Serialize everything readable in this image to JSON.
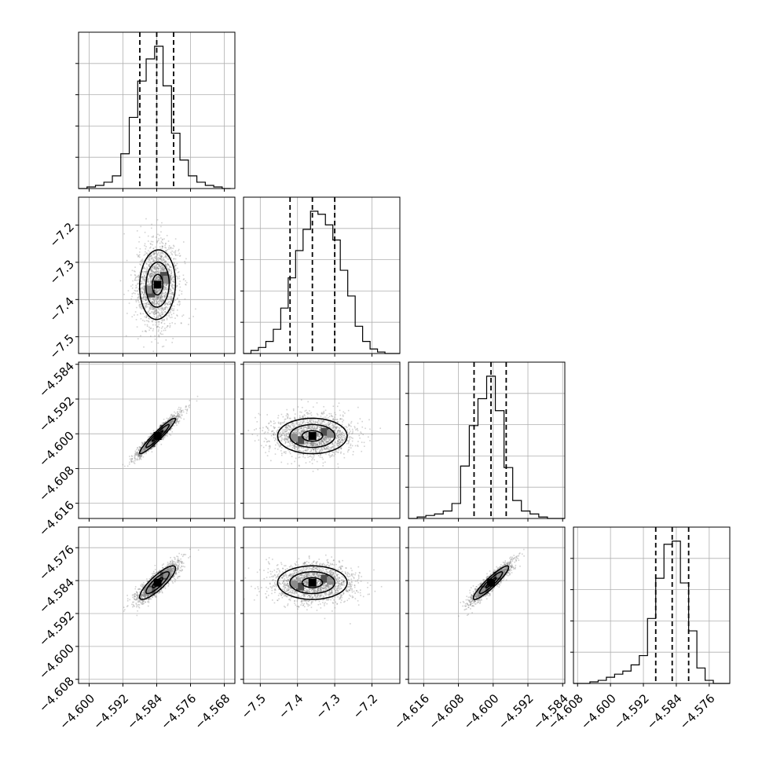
{
  "chart_data": {
    "type": "corner",
    "title": "",
    "parameters": [
      {
        "index": 0,
        "name": "",
        "range": [
          -4.6025,
          -4.5655
        ],
        "ticks": [
          -4.6,
          -4.592,
          -4.584,
          -4.576,
          -4.568
        ],
        "tick_labels": [
          "−4.600",
          "−4.592",
          "−4.584",
          "−4.576",
          "−4.568"
        ],
        "mean": -4.5838,
        "sd": 0.0025,
        "quantiles": [
          -4.588,
          -4.584,
          -4.58
        ],
        "corr_with": {
          "1": 0.05,
          "2": 0.95,
          "3": 0.85
        }
      },
      {
        "index": 1,
        "name": "",
        "range": [
          -7.545,
          -7.125
        ],
        "ticks": [
          -7.5,
          -7.4,
          -7.3,
          -7.2
        ],
        "tick_labels": [
          "−7.5",
          "−7.4",
          "−7.3",
          "−7.2"
        ],
        "mean": -7.36,
        "sd": 0.055,
        "quantiles": [
          -7.42,
          -7.36,
          -7.3
        ],
        "corr_with": {
          "2": 0.0,
          "3": 0.0
        }
      },
      {
        "index": 2,
        "name": "",
        "range": [
          -4.6195,
          -4.5835
        ],
        "ticks": [
          -4.616,
          -4.608,
          -4.6,
          -4.592,
          -4.584
        ],
        "tick_labels": [
          "−4.616",
          "−4.608",
          "−4.600",
          "−4.592",
          "−4.584"
        ],
        "mean": -4.6005,
        "sd": 0.0024,
        "quantiles": [
          -4.6044,
          -4.6005,
          -4.597
        ],
        "corr_with": {
          "3": 0.92
        }
      },
      {
        "index": 3,
        "name": "",
        "range": [
          -4.609,
          -4.571
        ],
        "ticks": [
          -4.608,
          -4.6,
          -4.592,
          -4.584,
          -4.576
        ],
        "tick_labels": [
          "−4.608",
          "−4.600",
          "−4.592",
          "−4.584",
          "−4.576"
        ],
        "mean": -4.5845,
        "sd": 0.0024,
        "quantiles": [
          -4.589,
          -4.585,
          -4.581
        ]
      }
    ],
    "histograms": [
      {
        "param": 0,
        "edges": [
          -4.6025,
          -4.6005,
          -4.5985,
          -4.5965,
          -4.5945,
          -4.5925,
          -4.5905,
          -4.5885,
          -4.5865,
          -4.5845,
          -4.5825,
          -4.5805,
          -4.5785,
          -4.5765,
          -4.5745,
          -4.5725,
          -4.5705,
          -4.5685,
          -4.5665
        ],
        "counts": [
          0,
          1,
          2,
          4,
          8,
          22,
          45,
          68,
          82,
          90,
          65,
          35,
          18,
          8,
          4,
          2,
          1,
          0
        ]
      },
      {
        "param": 1,
        "edges": [
          -7.545,
          -7.525,
          -7.505,
          -7.485,
          -7.465,
          -7.445,
          -7.425,
          -7.405,
          -7.385,
          -7.365,
          -7.345,
          -7.325,
          -7.305,
          -7.285,
          -7.265,
          -7.245,
          -7.225,
          -7.205,
          -7.185,
          -7.165,
          -7.145,
          -7.125
        ],
        "counts": [
          0,
          2,
          4,
          8,
          16,
          30,
          50,
          68,
          82,
          94,
          92,
          85,
          75,
          55,
          38,
          18,
          8,
          3,
          1,
          0,
          0
        ]
      },
      {
        "param": 2,
        "edges": [
          -4.6195,
          -4.6175,
          -4.6155,
          -4.6135,
          -4.6115,
          -4.6095,
          -4.6075,
          -4.6055,
          -4.6035,
          -4.6015,
          -4.5995,
          -4.5975,
          -4.5955,
          -4.5935,
          -4.5915,
          -4.5895,
          -4.5875,
          -4.5855,
          -4.5835
        ],
        "counts": [
          0,
          1,
          2,
          3,
          5,
          10,
          35,
          62,
          80,
          95,
          72,
          34,
          12,
          5,
          3,
          1,
          0,
          0
        ]
      },
      {
        "param": 3,
        "edges": [
          -4.609,
          -4.607,
          -4.605,
          -4.603,
          -4.601,
          -4.599,
          -4.597,
          -4.595,
          -4.593,
          -4.591,
          -4.589,
          -4.587,
          -4.585,
          -4.583,
          -4.581,
          -4.579,
          -4.577,
          -4.575,
          -4.573,
          -4.571
        ],
        "counts": [
          0,
          0,
          1,
          2,
          4,
          6,
          8,
          12,
          18,
          42,
          68,
          90,
          92,
          65,
          34,
          10,
          2,
          0,
          0
        ]
      }
    ],
    "panels_2d": [
      {
        "x_param": 0,
        "y_param": 1
      },
      {
        "x_param": 0,
        "y_param": 2
      },
      {
        "x_param": 1,
        "y_param": 2
      },
      {
        "x_param": 0,
        "y_param": 3
      },
      {
        "x_param": 1,
        "y_param": 3
      },
      {
        "x_param": 2,
        "y_param": 3
      }
    ],
    "colors": {
      "points": "#7f7f7f",
      "density": "#000000",
      "lines": "#000000",
      "grid": "#b0b0b0"
    },
    "grid": true
  }
}
